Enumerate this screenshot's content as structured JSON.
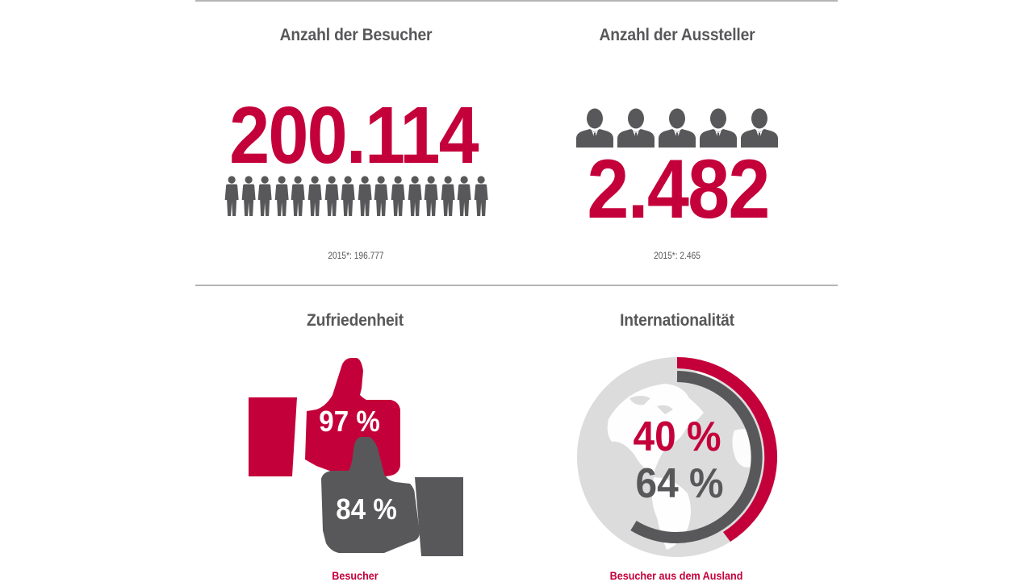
{
  "colors": {
    "accent_red": "#c4003a",
    "dark_gray": "#58585a",
    "globe_gray": "#dcdcdd",
    "rule_gray": "#b4b4b4"
  },
  "visitors": {
    "title": "Anzahl der Besucher",
    "value": "200.114",
    "icon": "person-icon",
    "icon_count": 16,
    "previous": "2015*: 196.777"
  },
  "exhibitors": {
    "title": "Anzahl der Aussteller",
    "value": "2.482",
    "icon": "businessman-icon",
    "icon_count": 5,
    "previous": "2015*: 2.465"
  },
  "satisfaction": {
    "title": "Zufriedenheit",
    "exhibitors_value": "97 %",
    "visitors_value": "84 %",
    "caption": "Besucher",
    "icons": [
      "thumbs-up-icon",
      "thumbs-up-icon"
    ]
  },
  "internationality": {
    "title": "Internationalität",
    "red_value": "40 %",
    "gray_value": "64 %",
    "caption": "Besucher aus dem Ausland",
    "icon": "globe-icon"
  },
  "chart_data": [
    {
      "type": "table",
      "title": "Anzahl der Besucher",
      "values": {
        "2016": 200114,
        "2015": 196777
      }
    },
    {
      "type": "table",
      "title": "Anzahl der Aussteller",
      "values": {
        "2016": 2482,
        "2015": 2465
      }
    },
    {
      "type": "bar",
      "title": "Zufriedenheit",
      "categories": [
        "red (Aussteller)",
        "gray (Besucher)"
      ],
      "values": [
        97,
        84
      ],
      "unit": "%"
    },
    {
      "type": "pie",
      "title": "Internationalität",
      "series": [
        {
          "name": "red arc",
          "values": [
            40
          ],
          "color": "#c4003a"
        },
        {
          "name": "gray arc",
          "values": [
            64
          ],
          "color": "#58585a"
        }
      ],
      "caption": "Besucher aus dem Ausland",
      "unit": "%"
    }
  ]
}
